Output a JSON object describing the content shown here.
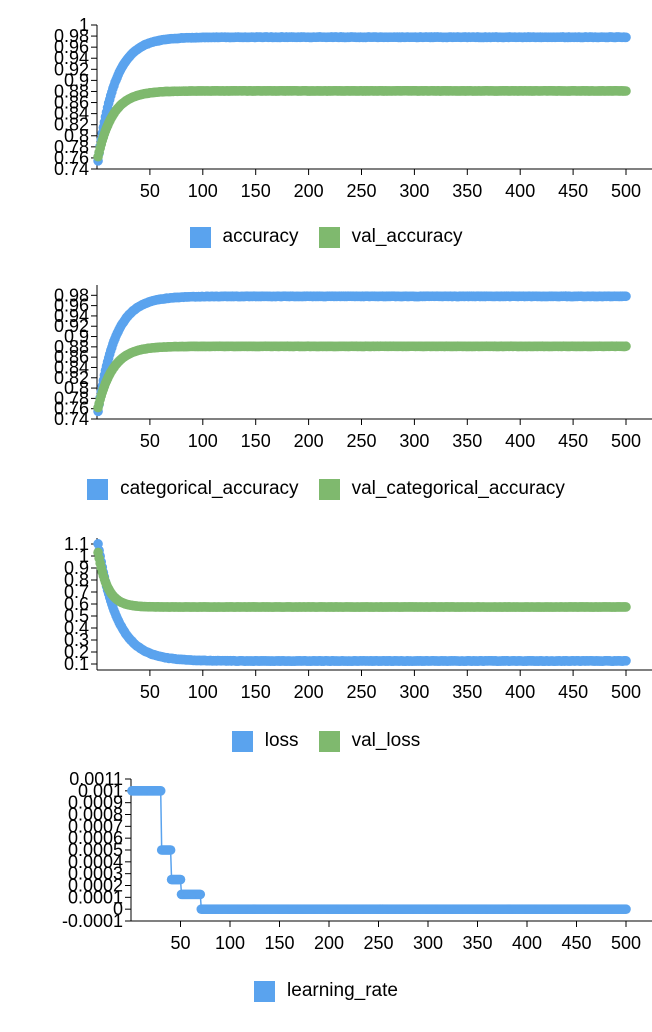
{
  "colors": {
    "train": "#5aa3ee",
    "val": "#7fb96e"
  },
  "chart_data": [
    {
      "type": "scatter",
      "name_key": "accuracy",
      "xlim": [
        0,
        500
      ],
      "ylim": [
        0.74,
        1.0
      ],
      "x_ticks": [
        "50",
        "100",
        "150",
        "200",
        "250",
        "300",
        "350",
        "400",
        "450",
        "500"
      ],
      "y_ticks": [
        "0.74",
        "0.76",
        "0.78",
        "0.8",
        "0.82",
        "0.84",
        "0.86",
        "0.88",
        "0.9",
        "0.92",
        "0.94",
        "0.96",
        "0.98",
        "1"
      ],
      "series": [
        {
          "name": "accuracy",
          "color": "#5aa3ee",
          "curve": {
            "start": 0.755,
            "end": 0.978,
            "tau": 16,
            "start_x": 1
          }
        },
        {
          "name": "val_accuracy",
          "color": "#7fb96e",
          "curve": {
            "start": 0.762,
            "end": 0.881,
            "tau": 14,
            "start_x": 1
          }
        }
      ]
    },
    {
      "type": "scatter",
      "name_key": "categorical_accuracy",
      "xlim": [
        0,
        500
      ],
      "ylim": [
        0.74,
        1.0
      ],
      "x_ticks": [
        "50",
        "100",
        "150",
        "200",
        "250",
        "300",
        "350",
        "400",
        "450",
        "500"
      ],
      "y_ticks": [
        "0.74",
        "0.76",
        "0.78",
        "0.8",
        "0.82",
        "0.84",
        "0.86",
        "0.88",
        "0.9",
        "0.92",
        "0.94",
        "0.96",
        "0.98"
      ],
      "series": [
        {
          "name": "categorical_accuracy",
          "color": "#5aa3ee",
          "curve": {
            "start": 0.755,
            "end": 0.978,
            "tau": 16,
            "start_x": 1
          }
        },
        {
          "name": "val_categorical_accuracy",
          "color": "#7fb96e",
          "curve": {
            "start": 0.762,
            "end": 0.881,
            "tau": 14,
            "start_x": 1
          }
        }
      ]
    },
    {
      "type": "scatter",
      "name_key": "loss",
      "xlim": [
        0,
        500
      ],
      "ylim": [
        0.05,
        1.15
      ],
      "x_ticks": [
        "50",
        "100",
        "150",
        "200",
        "250",
        "300",
        "350",
        "400",
        "450",
        "500"
      ],
      "y_ticks": [
        "0.1",
        "0.2",
        "0.3",
        "0.4",
        "0.5",
        "0.6",
        "0.7",
        "0.8",
        "0.9",
        "1",
        "1.1"
      ],
      "series": [
        {
          "name": "loss",
          "color": "#5aa3ee",
          "curve": {
            "start": 1.1,
            "end": 0.125,
            "tau": 18,
            "start_x": 1
          }
        },
        {
          "name": "val_loss",
          "color": "#7fb96e",
          "curve": {
            "start": 1.03,
            "end": 0.575,
            "tau": 9,
            "start_x": 1
          }
        }
      ]
    },
    {
      "type": "line",
      "name_key": "learning_rate",
      "xlim": [
        0,
        500
      ],
      "ylim": [
        -0.0001,
        0.0011
      ],
      "x_ticks": [
        "50",
        "100",
        "150",
        "200",
        "250",
        "300",
        "350",
        "400",
        "450",
        "500"
      ],
      "y_ticks": [
        "-0.0001",
        "0",
        "0.0001",
        "0.0002",
        "0.0003",
        "0.0004",
        "0.0005",
        "0.0006",
        "0.0007",
        "0.0008",
        "0.0009",
        "0.001",
        "0.0011"
      ],
      "series": [
        {
          "name": "learning_rate",
          "color": "#5aa3ee",
          "steps": [
            {
              "from": 1,
              "to": 30,
              "value": 0.001
            },
            {
              "from": 31,
              "to": 40,
              "value": 0.0005
            },
            {
              "from": 41,
              "to": 50,
              "value": 0.00025
            },
            {
              "from": 51,
              "to": 70,
              "value": 0.000125
            },
            {
              "from": 71,
              "to": 500,
              "value": 0.0
            }
          ]
        }
      ]
    }
  ],
  "legends": [
    [
      "accuracy",
      "val_accuracy"
    ],
    [
      "categorical_accuracy",
      "val_categorical_accuracy"
    ],
    [
      "loss",
      "val_loss"
    ],
    [
      "learning_rate"
    ]
  ]
}
